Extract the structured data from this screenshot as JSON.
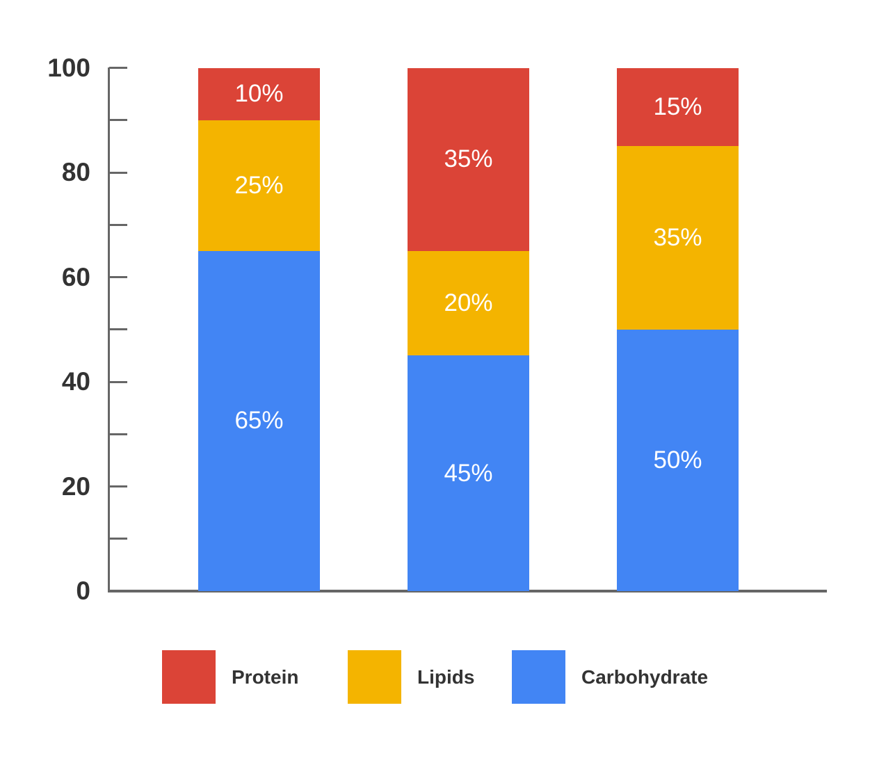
{
  "chart_data": {
    "type": "bar",
    "stacked": true,
    "title": "",
    "xlabel": "",
    "ylabel": "",
    "ylim": [
      0,
      100
    ],
    "yticks": [
      0,
      20,
      40,
      60,
      80,
      100
    ],
    "minor_ticks": [
      10,
      30,
      50,
      70,
      90
    ],
    "grid": false,
    "legend_position": "bottom",
    "categories": [
      "",
      "",
      ""
    ],
    "series": [
      {
        "name": "Carbohydrate",
        "color": "#4285F4",
        "values": [
          65,
          45,
          50
        ],
        "labels": [
          "65%",
          "45%",
          "50%"
        ]
      },
      {
        "name": "Lipids",
        "color": "#F4B400",
        "values": [
          25,
          20,
          35
        ],
        "labels": [
          "25%",
          "20%",
          "35%"
        ]
      },
      {
        "name": "Protein",
        "color": "#DB4437",
        "values": [
          10,
          35,
          15
        ],
        "labels": [
          "10%",
          "35%",
          "15%"
        ]
      }
    ]
  },
  "axis": {
    "tick_labels": [
      "0",
      "20",
      "40",
      "60",
      "80",
      "100"
    ],
    "color": "#666666"
  },
  "legend": [
    {
      "label": "Protein",
      "color": "#DB4437"
    },
    {
      "label": "Lipids",
      "color": "#F4B400"
    },
    {
      "label": "Carbohydrate",
      "color": "#4285F4"
    }
  ]
}
